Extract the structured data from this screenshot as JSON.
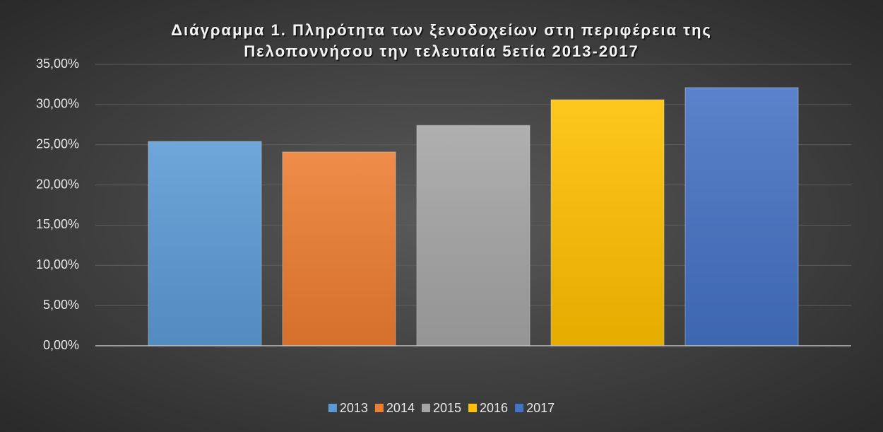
{
  "chart_data": {
    "type": "bar",
    "title": [
      "Διάγραμμα 1. Πληρότητα των ξενοδοχείων στη περιφέρεια της",
      "Πελοποννήσου την τελευταία 5ετία 2013-2017"
    ],
    "categories": [
      null
    ],
    "series": [
      {
        "name": "2013",
        "color": "#5b9bd5",
        "values": [
          25.4
        ]
      },
      {
        "name": "2014",
        "color": "#ed7d31",
        "values": [
          24.1
        ]
      },
      {
        "name": "2015",
        "color": "#a5a5a5",
        "values": [
          27.4
        ]
      },
      {
        "name": "2016",
        "color": "#ffc000",
        "values": [
          30.6
        ]
      },
      {
        "name": "2017",
        "color": "#4472c4",
        "values": [
          32.1
        ]
      }
    ],
    "ylim": [
      0,
      35
    ],
    "yticks": [
      {
        "value": 0,
        "label": "0,00%"
      },
      {
        "value": 5,
        "label": "5,00%"
      },
      {
        "value": 10,
        "label": "10,00%"
      },
      {
        "value": 15,
        "label": "15,00%"
      },
      {
        "value": 20,
        "label": "20,00%"
      },
      {
        "value": 25,
        "label": "25,00%"
      },
      {
        "value": 30,
        "label": "30,00%"
      },
      {
        "value": 35,
        "label": "35,00%"
      }
    ],
    "grid": true,
    "legend": "bottom"
  }
}
